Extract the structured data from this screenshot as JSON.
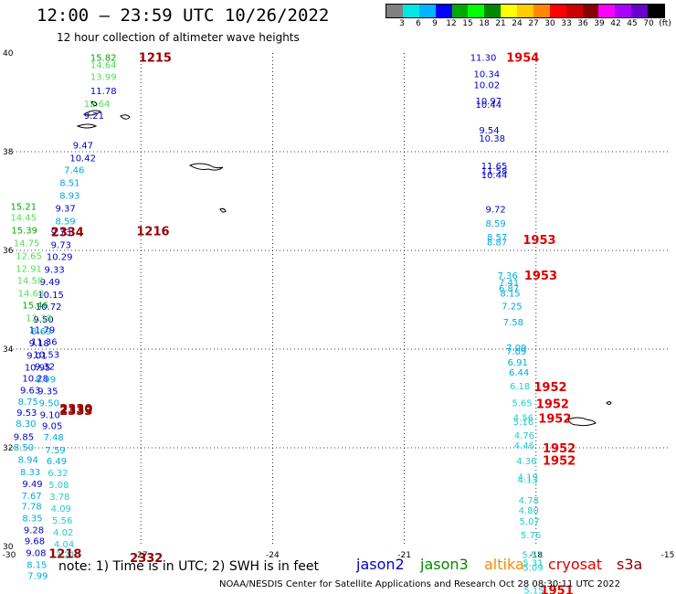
{
  "header": {
    "title": "12:00 – 23:59 UTC 10/26/2022",
    "subtitle": "12 hour collection of altimeter wave heights"
  },
  "colorbar": {
    "colors": [
      "#808080",
      "#00e6e6",
      "#00b4ff",
      "#0000ff",
      "#00aa00",
      "#00ff00",
      "#008800",
      "#ffff00",
      "#ffcc00",
      "#ff8800",
      "#ff0000",
      "#cc0000",
      "#880000",
      "#ff00ff",
      "#aa00ff",
      "#6600cc",
      "#000000"
    ],
    "labels": [
      "3",
      "6",
      "9",
      "12",
      "15",
      "18",
      "21",
      "24",
      "27",
      "30",
      "33",
      "36",
      "39",
      "42",
      "45",
      "70",
      "(ft)"
    ]
  },
  "footer": {
    "note": "note: 1) Time is in UTC; 2) SWH is in feet",
    "satellites": [
      {
        "name": "jason2",
        "color": "#0000cc"
      },
      {
        "name": "jason3",
        "color": "#008800"
      },
      {
        "name": "altika",
        "color": "#ff8800"
      },
      {
        "name": "cryosat",
        "color": "#dd0000"
      },
      {
        "name": "s3a",
        "color": "#880000"
      }
    ],
    "credit": "NOAA/NESDIS Center for Satellite Applications and Research   Oct 28 08:30:11 UTC 2022"
  },
  "chart_data": {
    "type": "scatter",
    "title": "12:00 – 23:59 UTC 10/26/2022",
    "subtitle": "12 hour collection of altimeter wave heights",
    "xlim": [
      -30,
      -15
    ],
    "ylim": [
      30,
      40
    ],
    "x_ticks": [
      "-30",
      "-27",
      "-24",
      "-21",
      "-18",
      "-15"
    ],
    "y_ticks": [
      "30",
      "32",
      "34",
      "36",
      "38",
      "40"
    ],
    "grid": true,
    "unit": "(ft)",
    "swh_labels": [
      {
        "lon": -28.15,
        "lat": 39.92,
        "text": "15.82",
        "c": "#00aa00"
      },
      {
        "lon": -28.15,
        "lat": 39.77,
        "text": "14.64",
        "c": "#55dd55"
      },
      {
        "lon": -28.15,
        "lat": 39.53,
        "text": "13.99",
        "c": "#55dd55"
      },
      {
        "lon": -28.15,
        "lat": 39.24,
        "text": "11.78",
        "c": "#0000cc"
      },
      {
        "lon": -28.3,
        "lat": 38.98,
        "text": "12.64",
        "c": "#55dd55"
      },
      {
        "lon": -28.3,
        "lat": 38.74,
        "text": "9.21",
        "c": "#0000cc"
      },
      {
        "lon": -28.55,
        "lat": 38.14,
        "text": "9.47",
        "c": "#0000cc"
      },
      {
        "lon": -28.62,
        "lat": 37.88,
        "text": "10.42",
        "c": "#0000cc"
      },
      {
        "lon": -28.75,
        "lat": 37.64,
        "text": "7.46",
        "c": "#00aadd"
      },
      {
        "lon": -28.85,
        "lat": 37.38,
        "text": "8.51",
        "c": "#00aadd"
      },
      {
        "lon": -28.85,
        "lat": 37.12,
        "text": "8.93",
        "c": "#00aadd"
      },
      {
        "lon": -28.95,
        "lat": 36.86,
        "text": "9.37",
        "c": "#0000cc"
      },
      {
        "lon": -28.95,
        "lat": 36.6,
        "text": "8.59",
        "c": "#00aadd"
      },
      {
        "lon": -29.05,
        "lat": 36.38,
        "text": "9.73",
        "c": "#0000cc"
      },
      {
        "lon": -29.05,
        "lat": 36.12,
        "text": "9.73",
        "c": "#0000cc"
      },
      {
        "lon": -29.15,
        "lat": 35.88,
        "text": "10.29",
        "c": "#0000cc"
      },
      {
        "lon": -29.2,
        "lat": 35.62,
        "text": "9.33",
        "c": "#0000cc"
      },
      {
        "lon": -29.3,
        "lat": 35.37,
        "text": "9.49",
        "c": "#0000cc"
      },
      {
        "lon": -29.35,
        "lat": 35.11,
        "text": "10.15",
        "c": "#0000cc"
      },
      {
        "lon": -29.4,
        "lat": 34.87,
        "text": "10.72",
        "c": "#0000cc"
      },
      {
        "lon": -29.45,
        "lat": 34.61,
        "text": "9.50",
        "c": "#0000cc"
      },
      {
        "lon": -29.5,
        "lat": 34.37,
        "text": "8.69",
        "c": "#00aadd"
      },
      {
        "lon": -29.55,
        "lat": 34.13,
        "text": "9.18",
        "c": "#0000cc"
      },
      {
        "lon": -29.6,
        "lat": 33.88,
        "text": "9.01",
        "c": "#0000cc"
      },
      {
        "lon": -29.65,
        "lat": 33.64,
        "text": "10.95",
        "c": "#0000cc"
      },
      {
        "lon": -29.7,
        "lat": 33.42,
        "text": "10.28",
        "c": "#0000cc"
      },
      {
        "lon": -29.75,
        "lat": 33.18,
        "text": "9.63",
        "c": "#0000cc"
      },
      {
        "lon": -29.8,
        "lat": 32.94,
        "text": "8.75",
        "c": "#00aadd"
      },
      {
        "lon": -29.83,
        "lat": 32.72,
        "text": "9.53",
        "c": "#0000cc"
      },
      {
        "lon": -29.85,
        "lat": 32.5,
        "text": "8.30",
        "c": "#00aadd"
      },
      {
        "lon": -29.9,
        "lat": 32.23,
        "text": "9.85",
        "c": "#0000cc"
      },
      {
        "lon": -29.9,
        "lat": 32.02,
        "text": "8.50",
        "c": "#00aadd"
      },
      {
        "lon": -29.8,
        "lat": 31.77,
        "text": "8.94",
        "c": "#00aadd"
      },
      {
        "lon": -29.75,
        "lat": 31.52,
        "text": "8.33",
        "c": "#00aadd"
      },
      {
        "lon": -29.7,
        "lat": 31.28,
        "text": "9.49",
        "c": "#0000cc"
      },
      {
        "lon": -29.72,
        "lat": 31.04,
        "text": "7.67",
        "c": "#00aadd"
      },
      {
        "lon": -29.72,
        "lat": 30.82,
        "text": "7.78",
        "c": "#00aadd"
      },
      {
        "lon": -29.7,
        "lat": 30.58,
        "text": "8.35",
        "c": "#00aadd"
      },
      {
        "lon": -29.67,
        "lat": 30.34,
        "text": "9.28",
        "c": "#0000cc"
      },
      {
        "lon": -29.65,
        "lat": 30.12,
        "text": "9.68",
        "c": "#0000cc"
      },
      {
        "lon": -29.62,
        "lat": 29.88,
        "text": "9.08",
        "c": "#0000cc"
      },
      {
        "lon": -29.6,
        "lat": 29.64,
        "text": "8.15",
        "c": "#00aadd"
      },
      {
        "lon": -29.58,
        "lat": 29.42,
        "text": "7.99",
        "c": "#00aadd"
      },
      {
        "lon": -29.97,
        "lat": 36.9,
        "text": "15.21",
        "c": "#00aa00"
      },
      {
        "lon": -29.97,
        "lat": 36.68,
        "text": "14.45",
        "c": "#55dd55"
      },
      {
        "lon": -29.95,
        "lat": 36.42,
        "text": "15.39",
        "c": "#00aa00"
      },
      {
        "lon": -29.9,
        "lat": 36.16,
        "text": "14.75",
        "c": "#55dd55"
      },
      {
        "lon": -29.85,
        "lat": 35.9,
        "text": "12.65",
        "c": "#55dd55"
      },
      {
        "lon": -29.85,
        "lat": 35.64,
        "text": "12.91",
        "c": "#55dd55"
      },
      {
        "lon": -29.82,
        "lat": 35.4,
        "text": "14.58",
        "c": "#55dd55"
      },
      {
        "lon": -29.8,
        "lat": 35.14,
        "text": "14.68",
        "c": "#55dd55"
      },
      {
        "lon": -29.7,
        "lat": 34.9,
        "text": "15.46",
        "c": "#00aa00"
      },
      {
        "lon": -29.62,
        "lat": 34.64,
        "text": "12.38",
        "c": "#55dd55"
      },
      {
        "lon": -29.55,
        "lat": 34.4,
        "text": "11.79",
        "c": "#0000cc"
      },
      {
        "lon": -29.5,
        "lat": 34.16,
        "text": "11.36",
        "c": "#0000cc"
      },
      {
        "lon": -29.45,
        "lat": 33.9,
        "text": "10.53",
        "c": "#0000cc"
      },
      {
        "lon": -29.42,
        "lat": 33.66,
        "text": "9.32",
        "c": "#0000cc"
      },
      {
        "lon": -29.4,
        "lat": 33.4,
        "text": "8.99",
        "c": "#00aadd"
      },
      {
        "lon": -29.35,
        "lat": 33.16,
        "text": "9.35",
        "c": "#0000cc"
      },
      {
        "lon": -29.32,
        "lat": 32.92,
        "text": "9.50",
        "c": "#00aadd"
      },
      {
        "lon": -29.3,
        "lat": 32.68,
        "text": "9.10",
        "c": "#0000cc"
      },
      {
        "lon": -29.25,
        "lat": 32.45,
        "text": "9.05",
        "c": "#0000cc"
      },
      {
        "lon": -29.22,
        "lat": 32.22,
        "text": "7.48",
        "c": "#00aadd"
      },
      {
        "lon": -29.18,
        "lat": 31.96,
        "text": "7.59",
        "c": "#00aadd"
      },
      {
        "lon": -29.15,
        "lat": 31.74,
        "text": "6.49",
        "c": "#00aadd"
      },
      {
        "lon": -29.12,
        "lat": 31.5,
        "text": "6.32",
        "c": "#22cccc"
      },
      {
        "lon": -29.1,
        "lat": 31.26,
        "text": "5.08",
        "c": "#22cccc"
      },
      {
        "lon": -29.08,
        "lat": 31.02,
        "text": "3.78",
        "c": "#22cccc"
      },
      {
        "lon": -29.05,
        "lat": 30.78,
        "text": "4.09",
        "c": "#22cccc"
      },
      {
        "lon": -29.02,
        "lat": 30.54,
        "text": "5.56",
        "c": "#22cccc"
      },
      {
        "lon": -29.0,
        "lat": 30.3,
        "text": "4.02",
        "c": "#22cccc"
      },
      {
        "lon": -28.98,
        "lat": 30.06,
        "text": "4.04",
        "c": "#22cccc"
      },
      {
        "lon": -28.95,
        "lat": 29.84,
        "text": "3.21",
        "c": "#22cccc"
      },
      {
        "lon": -19.5,
        "lat": 39.92,
        "text": "11.30",
        "c": "#0000cc"
      },
      {
        "lon": -19.42,
        "lat": 39.58,
        "text": "10.34",
        "c": "#0000cc"
      },
      {
        "lon": -19.42,
        "lat": 39.36,
        "text": "10.02",
        "c": "#0000cc"
      },
      {
        "lon": -19.38,
        "lat": 39.04,
        "text": "10.97",
        "c": "#0000cc"
      },
      {
        "lon": -19.38,
        "lat": 38.96,
        "text": "10.44",
        "c": "#0000cc"
      },
      {
        "lon": -19.3,
        "lat": 38.44,
        "text": "9.54",
        "c": "#0000cc"
      },
      {
        "lon": -19.3,
        "lat": 38.28,
        "text": "10.38",
        "c": "#0000cc"
      },
      {
        "lon": -19.25,
        "lat": 37.72,
        "text": "11.65",
        "c": "#0000cc"
      },
      {
        "lon": -19.25,
        "lat": 37.62,
        "text": "11.58",
        "c": "#0000cc"
      },
      {
        "lon": -19.25,
        "lat": 37.54,
        "text": "10.44",
        "c": "#0000cc"
      },
      {
        "lon": -19.15,
        "lat": 36.84,
        "text": "9.72",
        "c": "#0000cc"
      },
      {
        "lon": -19.15,
        "lat": 36.56,
        "text": "8.59",
        "c": "#00aadd"
      },
      {
        "lon": -19.12,
        "lat": 36.28,
        "text": "8.57",
        "c": "#00aadd"
      },
      {
        "lon": -19.12,
        "lat": 36.18,
        "text": "8.87",
        "c": "#00aadd"
      },
      {
        "lon": -18.88,
        "lat": 35.5,
        "text": "7.36",
        "c": "#00aadd"
      },
      {
        "lon": -18.85,
        "lat": 35.36,
        "text": "7.41",
        "c": "#00aadd"
      },
      {
        "lon": -18.85,
        "lat": 35.24,
        "text": "6.87",
        "c": "#00aadd"
      },
      {
        "lon": -18.82,
        "lat": 35.14,
        "text": "8.15",
        "c": "#00aadd"
      },
      {
        "lon": -18.78,
        "lat": 34.88,
        "text": "7.25",
        "c": "#00aadd"
      },
      {
        "lon": -18.75,
        "lat": 34.56,
        "text": "7.58",
        "c": "#00aadd"
      },
      {
        "lon": -18.68,
        "lat": 34.04,
        "text": "7.09",
        "c": "#00aadd"
      },
      {
        "lon": -18.68,
        "lat": 33.96,
        "text": "7.09",
        "c": "#00aadd"
      },
      {
        "lon": -18.65,
        "lat": 33.74,
        "text": "6.91",
        "c": "#00aadd"
      },
      {
        "lon": -18.62,
        "lat": 33.54,
        "text": "6.44",
        "c": "#00aadd"
      },
      {
        "lon": -18.6,
        "lat": 33.26,
        "text": "6.18",
        "c": "#22cccc"
      },
      {
        "lon": -18.55,
        "lat": 32.92,
        "text": "5.65",
        "c": "#22cccc"
      },
      {
        "lon": -18.52,
        "lat": 32.62,
        "text": "4.56",
        "c": "#22cccc"
      },
      {
        "lon": -18.52,
        "lat": 32.54,
        "text": "5.16",
        "c": "#22cccc"
      },
      {
        "lon": -18.5,
        "lat": 32.26,
        "text": "4.76",
        "c": "#22cccc"
      },
      {
        "lon": -18.5,
        "lat": 32.06,
        "text": "4.46",
        "c": "#22cccc"
      },
      {
        "lon": -18.45,
        "lat": 31.74,
        "text": "4.36",
        "c": "#22cccc"
      },
      {
        "lon": -18.42,
        "lat": 31.42,
        "text": "4.19",
        "c": "#22cccc"
      },
      {
        "lon": -18.42,
        "lat": 31.36,
        "text": "4.13",
        "c": "#22cccc"
      },
      {
        "lon": -18.4,
        "lat": 30.94,
        "text": "4.78",
        "c": "#22cccc"
      },
      {
        "lon": -18.4,
        "lat": 30.74,
        "text": "4.80",
        "c": "#22cccc"
      },
      {
        "lon": -18.38,
        "lat": 30.52,
        "text": "5.07",
        "c": "#22cccc"
      },
      {
        "lon": -18.35,
        "lat": 30.24,
        "text": "5.76",
        "c": "#22cccc"
      },
      {
        "lon": -18.32,
        "lat": 29.84,
        "text": "5.57",
        "c": "#22cccc"
      },
      {
        "lon": -18.3,
        "lat": 29.68,
        "text": "5.31",
        "c": "#22cccc"
      },
      {
        "lon": -18.3,
        "lat": 29.58,
        "text": "5.09",
        "c": "#22cccc"
      },
      {
        "lon": -18.28,
        "lat": 29.12,
        "text": "5.15",
        "c": "#22cccc"
      },
      {
        "lon": -18.25,
        "lat": 28.86,
        "text": "5.27",
        "c": "#22cccc"
      }
    ],
    "time_labels": [
      {
        "lon": -27.05,
        "lat": 39.92,
        "text": "1215",
        "c": "#990000"
      },
      {
        "lon": -27.1,
        "lat": 36.4,
        "text": "1216",
        "c": "#990000"
      },
      {
        "lon": -29.05,
        "lat": 36.38,
        "text": "2334",
        "c": "#990000"
      },
      {
        "lon": -28.85,
        "lat": 32.8,
        "text": "2330",
        "c": "#990000"
      },
      {
        "lon": -28.85,
        "lat": 32.76,
        "text": "2333",
        "c": "#990000"
      },
      {
        "lon": -29.1,
        "lat": 29.86,
        "text": "1218",
        "c": "#990000"
      },
      {
        "lon": -27.25,
        "lat": 29.78,
        "text": "2332",
        "c": "#990000"
      },
      {
        "lon": -18.68,
        "lat": 39.92,
        "text": "1954",
        "c": "#dd0000"
      },
      {
        "lon": -18.3,
        "lat": 36.22,
        "text": "1953",
        "c": "#dd0000"
      },
      {
        "lon": -18.27,
        "lat": 35.5,
        "text": "1953",
        "c": "#dd0000"
      },
      {
        "lon": -18.05,
        "lat": 33.24,
        "text": "1952",
        "c": "#dd0000"
      },
      {
        "lon": -18.0,
        "lat": 32.9,
        "text": "1952",
        "c": "#dd0000"
      },
      {
        "lon": -17.95,
        "lat": 32.6,
        "text": "1952",
        "c": "#dd0000"
      },
      {
        "lon": -17.85,
        "lat": 32.0,
        "text": "1952",
        "c": "#dd0000"
      },
      {
        "lon": -17.85,
        "lat": 31.75,
        "text": "1952",
        "c": "#dd0000"
      },
      {
        "lon": -17.9,
        "lat": 29.12,
        "text": "1951",
        "c": "#dd0000"
      },
      {
        "lon": -17.9,
        "lat": 28.86,
        "text": "1951",
        "c": "#dd0000"
      }
    ]
  }
}
